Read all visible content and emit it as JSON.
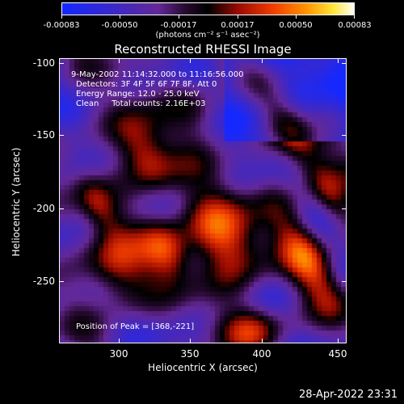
{
  "colorbar": {
    "tick_labels": [
      "-0.00083",
      "-0.00050",
      "-0.00017",
      "0.00017",
      "0.00050",
      "0.00083"
    ],
    "units": "(photons cm⁻² s⁻¹ asec⁻²)"
  },
  "title": "Reconstructed RHESSI Image",
  "info": {
    "time": "9-May-2002 11:14:32.000 to 11:16:56.000",
    "detectors": "Detectors: 3F 4F 5F 6F 7F 8F, Att 0",
    "energy": "Energy Range: 12.0 - 25.0 keV",
    "clean": "Clean     Total counts: 2.16E+03",
    "peak": "Position of Peak = [368,-221]"
  },
  "axes": {
    "xlabel": "Heliocentric X (arcsec)",
    "ylabel": "Heliocentric Y (arcsec)",
    "xticks": [
      "300",
      "350",
      "400",
      "450"
    ],
    "yticks": [
      "-100",
      "-150",
      "-200",
      "-250"
    ]
  },
  "timestamp": "28-Apr-2022 23:31"
}
